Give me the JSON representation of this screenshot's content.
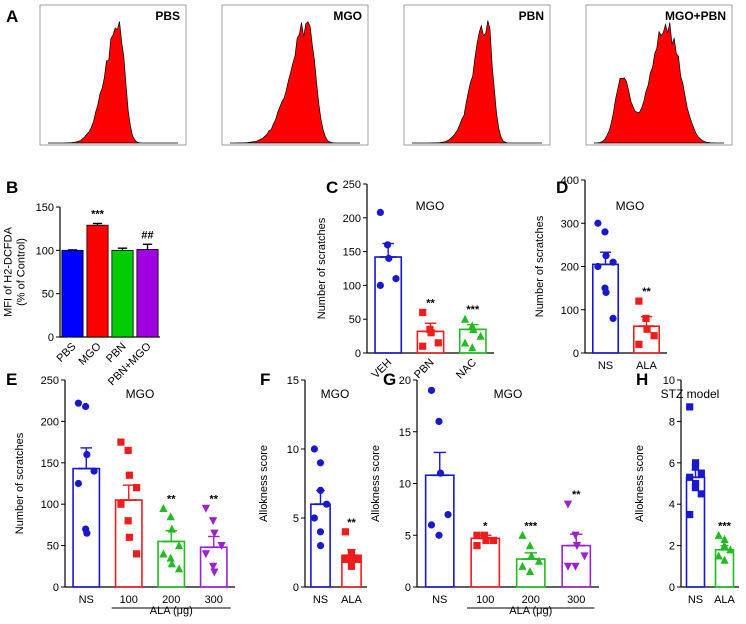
{
  "chart_data": [
    {
      "id": "A",
      "type": "histogram",
      "panel_letter": "A",
      "plots": [
        {
          "label": "PBS",
          "shape": "unimodal",
          "peak_position": 0.55,
          "spread": "narrow"
        },
        {
          "label": "MGO",
          "shape": "unimodal",
          "peak_position": 0.6,
          "spread": "medium"
        },
        {
          "label": "PBN",
          "shape": "unimodal",
          "peak_position": 0.58,
          "spread": "narrow"
        },
        {
          "label": "MGO+PBN",
          "shape": "bimodal",
          "peak_position": 0.5,
          "spread": "wide"
        }
      ],
      "fill_color": "#ff0000"
    },
    {
      "id": "B",
      "type": "bar",
      "panel_letter": "B",
      "title": "",
      "ylabel": "MFI of H2-DCFDA\n(% of Control)",
      "ylim": [
        0,
        150
      ],
      "yticks": [
        0,
        50,
        100,
        150
      ],
      "categories": [
        "PBS",
        "MGO",
        "PBN",
        "PBN+MGO"
      ],
      "values": [
        100,
        129,
        100,
        101
      ],
      "errors": [
        0.5,
        2,
        2.5,
        6
      ],
      "colors": [
        "#0000ff",
        "#ff0000",
        "#00cc00",
        "#a000e0"
      ],
      "annotations": [
        "",
        "***",
        "",
        "##"
      ],
      "xlabel_rotated": true
    },
    {
      "id": "C",
      "type": "dot-bar",
      "panel_letter": "C",
      "title": "MGO",
      "ylabel": "Number of scratches",
      "ylim": [
        0,
        250
      ],
      "yticks": [
        0,
        50,
        100,
        150,
        200,
        250
      ],
      "categories": [
        "VEH",
        "PBN",
        "NAC"
      ],
      "means": [
        142,
        32,
        35
      ],
      "errors": [
        20,
        12,
        7
      ],
      "points": [
        [
          208,
          160,
          140,
          110,
          100
        ],
        [
          60,
          35,
          30,
          15,
          10
        ],
        [
          50,
          40,
          35,
          25,
          15,
          8
        ]
      ],
      "markers": [
        "circle",
        "square",
        "triangle"
      ],
      "colors": [
        "#1818cc",
        "#ee1c1c",
        "#22bb22"
      ],
      "annotations": [
        "",
        "**",
        "***"
      ],
      "xlabel_rotated": true
    },
    {
      "id": "D",
      "type": "dot-bar",
      "panel_letter": "D",
      "title": "MGO",
      "ylabel": "Number of scratches",
      "ylim": [
        0,
        400
      ],
      "yticks": [
        0,
        100,
        200,
        300,
        400
      ],
      "categories": [
        "NS",
        "ALA"
      ],
      "means": [
        205,
        62
      ],
      "errors": [
        28,
        22
      ],
      "points": [
        [
          300,
          280,
          225,
          210,
          200,
          150,
          140,
          80
        ],
        [
          120,
          80,
          55,
          40,
          20
        ]
      ],
      "markers": [
        "circle",
        "square"
      ],
      "colors": [
        "#1818cc",
        "#ee1c1c"
      ],
      "annotations": [
        "",
        "**"
      ]
    },
    {
      "id": "E",
      "type": "dot-bar",
      "panel_letter": "E",
      "title": "MGO",
      "ylabel": "Number of scratches",
      "ylim": [
        0,
        250
      ],
      "yticks": [
        0,
        50,
        100,
        150,
        200,
        250
      ],
      "categories": [
        "NS",
        "100",
        "200",
        "300"
      ],
      "group_label": "ALA (μg)",
      "means": [
        143,
        105,
        55,
        48
      ],
      "errors": [
        25,
        18,
        13,
        13
      ],
      "points": [
        [
          222,
          218,
          160,
          140,
          125,
          70,
          65
        ],
        [
          175,
          165,
          135,
          120,
          100,
          80,
          60,
          40
        ],
        [
          95,
          85,
          70,
          50,
          40,
          35,
          28,
          22
        ],
        [
          95,
          80,
          65,
          50,
          40,
          25,
          18
        ]
      ],
      "markers": [
        "circle",
        "square",
        "triangle",
        "triangle-down"
      ],
      "colors": [
        "#1818cc",
        "#ee1c1c",
        "#22bb22",
        "#9922cc"
      ],
      "annotations": [
        "",
        "",
        "**",
        "**"
      ]
    },
    {
      "id": "F",
      "type": "dot-bar",
      "panel_letter": "F",
      "title": "MGO",
      "ylabel": "Allokness score",
      "ylim": [
        0,
        15
      ],
      "yticks": [
        0,
        5,
        10,
        15
      ],
      "categories": [
        "NS",
        "ALA"
      ],
      "means": [
        6,
        2.3
      ],
      "errors": [
        1,
        0.4
      ],
      "points": [
        [
          10,
          9,
          7,
          6,
          5,
          4,
          3
        ],
        [
          4,
          2.5,
          2,
          2,
          2,
          1.5
        ]
      ],
      "markers": [
        "circle",
        "square"
      ],
      "colors": [
        "#1818cc",
        "#ee1c1c"
      ],
      "annotations": [
        "",
        "**"
      ]
    },
    {
      "id": "G",
      "type": "dot-bar",
      "panel_letter": "G",
      "title": "MGO",
      "ylabel": "Allokness score",
      "ylim": [
        0,
        20
      ],
      "yticks": [
        0,
        5,
        10,
        15,
        20
      ],
      "categories": [
        "NS",
        "100",
        "200",
        "300"
      ],
      "group_label": "ALA (μg)",
      "means": [
        10.8,
        4.7,
        2.7,
        4.0
      ],
      "errors": [
        2.2,
        0.3,
        0.6,
        1.1
      ],
      "points": [
        [
          19,
          16,
          11,
          7,
          6,
          5
        ],
        [
          5,
          5,
          4.5,
          4.5,
          4
        ],
        [
          5,
          4,
          3,
          2.5,
          2,
          1.5
        ],
        [
          8,
          5,
          4,
          3,
          2,
          2
        ]
      ],
      "markers": [
        "circle",
        "square",
        "triangle",
        "triangle-down"
      ],
      "colors": [
        "#1818cc",
        "#ee1c1c",
        "#22bb22",
        "#9922cc"
      ],
      "annotations": [
        "",
        "*",
        "***",
        "**"
      ]
    },
    {
      "id": "H",
      "type": "dot-bar",
      "panel_letter": "H",
      "title": "STZ model",
      "ylabel": "Allokness score",
      "ylim": [
        0,
        10
      ],
      "yticks": [
        0,
        2,
        4,
        6,
        8,
        10
      ],
      "categories": [
        "NS",
        "ALA"
      ],
      "means": [
        5.3,
        1.8
      ],
      "errors": [
        0.35,
        0.2
      ],
      "points": [
        [
          8.7,
          6,
          5.8,
          5.5,
          5.3,
          5,
          4.8,
          4.5,
          3.5
        ],
        [
          2.5,
          2.3,
          2,
          1.8,
          1.5,
          1.3
        ]
      ],
      "markers": [
        "square",
        "triangle"
      ],
      "colors": [
        "#1818cc",
        "#22bb22"
      ],
      "annotations": [
        "",
        "***"
      ]
    }
  ]
}
